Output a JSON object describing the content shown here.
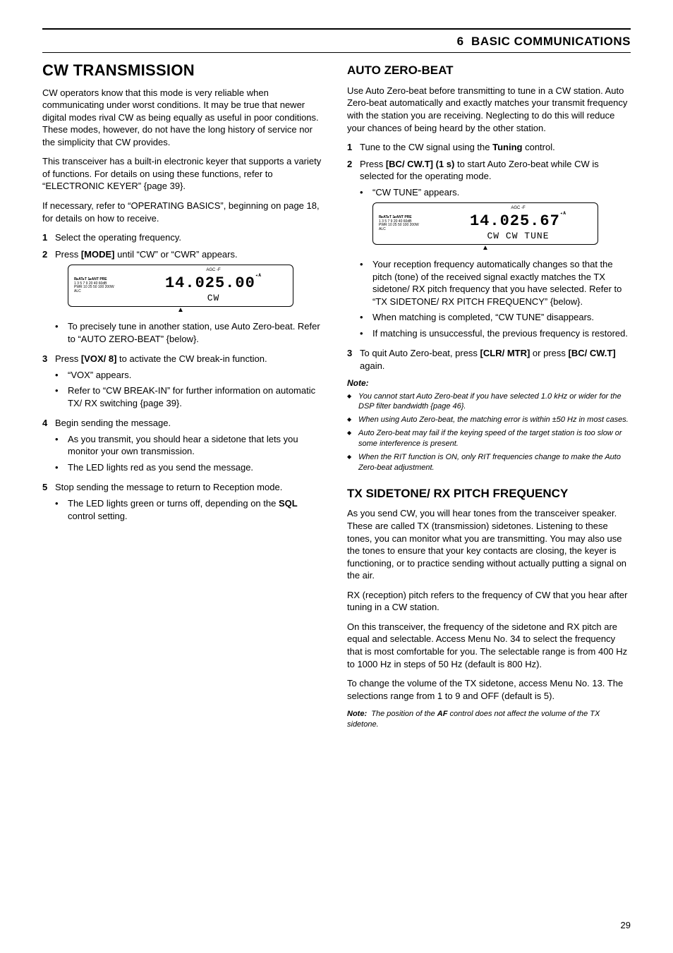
{
  "chapter": {
    "num": "6",
    "title": "BASIC COMMUNICATIONS"
  },
  "pageNumber": "29",
  "left": {
    "sectionTitle": "CW TRANSMISSION",
    "p1": "CW operators know that this mode is very reliable when communicating under worst conditions.  It may be true that newer digital modes rival CW as being equally as useful in poor conditions.  These modes, however, do not have the long history of service nor the simplicity that CW provides.",
    "p2": "This transceiver has a built-in electronic keyer that supports a variety of functions.  For details on using these functions, refer to “ELECTRONIC KEYER” {page 39}.",
    "p3": "If necessary, refer to “OPERATING BASICS”, beginning on page 18, for details on how to receive.",
    "steps": [
      {
        "num": "1",
        "text": "Select the operating frequency."
      },
      {
        "num": "2",
        "text_a": "Press ",
        "bold": "[MODE]",
        "text_b": " until “CW” or “CWR” appears.",
        "lcd": {
          "freq": "14.025.00",
          "mode": "CW",
          "top": "R▸AT▸T 1▸ANT      PRE",
          "agc": "AGC  -F",
          "meter": "1 3 5 7 9   20  40  60dB",
          "meter2": "PWR  10 25 50     100 200W\nALC"
        },
        "bullets": [
          "To precisely tune in another station, use Auto Zero-beat.  Refer to “AUTO ZERO-BEAT” {below}."
        ]
      },
      {
        "num": "3",
        "text_a": "Press ",
        "bold": "[VOX/ 8]",
        "text_b": " to activate the CW break-in function.",
        "bullets": [
          "“VOX” appears.",
          "Refer to “CW BREAK-IN” for further information on automatic TX/ RX switching {page 39}."
        ]
      },
      {
        "num": "4",
        "text": "Begin sending the message.",
        "bullets": [
          "As you transmit, you should hear a sidetone that lets you monitor your own transmission.",
          "The LED lights red as you send the message."
        ]
      },
      {
        "num": "5",
        "text": "Stop sending the message to return to Reception mode.",
        "bullets_html": [
          "The LED lights green or turns off, depending on the <b>SQL</b> control setting."
        ]
      }
    ]
  },
  "right": {
    "sub1": {
      "title": "AUTO ZERO-BEAT",
      "p1": "Use Auto Zero-beat before transmitting to tune in a CW station.  Auto Zero-beat automatically and exactly matches your transmit frequency with the station you are receiving.  Neglecting to do this will reduce your chances of being heard by the other station.",
      "steps": [
        {
          "num": "1",
          "html": "Tune to the CW signal using the <b>Tuning</b> control."
        },
        {
          "num": "2",
          "html": "Press <b>[BC/ CW.T] (1 s)</b> to start Auto Zero-beat while CW is selected for the operating mode.",
          "bullets": [
            "“CW TUNE” appears."
          ],
          "lcd": {
            "freq": "14.025.67",
            "mode": "CW   CW  TUNE",
            "top": "R▸AT▸T 1▸ANT        PRE",
            "agc": "AGC  -F",
            "meter": "1 3 5 7 9   20  40  60dB",
            "meter2": "PWR  10 25 50     100 200W\nALC"
          },
          "bullets2": [
            "Your reception frequency automatically changes so that the pitch (tone) of the received signal exactly matches the TX sidetone/ RX pitch frequency that you have selected.  Refer to “TX SIDETONE/ RX PITCH FREQUENCY” {below}.",
            "When matching is completed, “CW TUNE” disappears.",
            "If matching is unsuccessful, the previous frequency is restored."
          ]
        },
        {
          "num": "3",
          "html": "To quit Auto Zero-beat, press <b>[CLR/ MTR]</b> or press <b>[BC/ CW.T]</b> again."
        }
      ],
      "noteLabel": "Note:",
      "notes": [
        "You cannot start Auto Zero-beat if you have selected 1.0 kHz or wider for the DSP filter bandwidth {page 46}.",
        "When using Auto Zero-beat, the matching error is within ±50 Hz in most cases.",
        "Auto Zero-beat may fail if the keying speed of the target station is too slow or some interference is present.",
        "When the RIT function is ON, only RIT frequencies change to make the Auto Zero-beat adjustment."
      ]
    },
    "sub2": {
      "title": "TX SIDETONE/ RX PITCH FREQUENCY",
      "p1": "As you send CW, you will hear tones from the transceiver speaker.  These are called TX (transmission) sidetones.  Listening to these tones, you can monitor what you are transmitting.  You may also use the tones to ensure that your key contacts are closing, the keyer is functioning, or to practice sending without actually putting a signal on the air.",
      "p2": "RX (reception) pitch refers to the frequency of CW that you hear after tuning in a CW station.",
      "p3": "On this transceiver, the frequency of the sidetone and RX pitch are equal and selectable.  Access Menu No. 34 to select the frequency that is most comfortable for you.  The selectable range is from 400 Hz to 1000 Hz in steps of 50 Hz (default is 800 Hz).",
      "p4": "To change the volume of the TX sidetone, access Menu No. 13.  The selections range from 1 to 9 and OFF (default is 5).",
      "noteLabel": "Note:",
      "note": "The position of the <b>AF</b> control does not affect the volume of the TX sidetone."
    }
  }
}
